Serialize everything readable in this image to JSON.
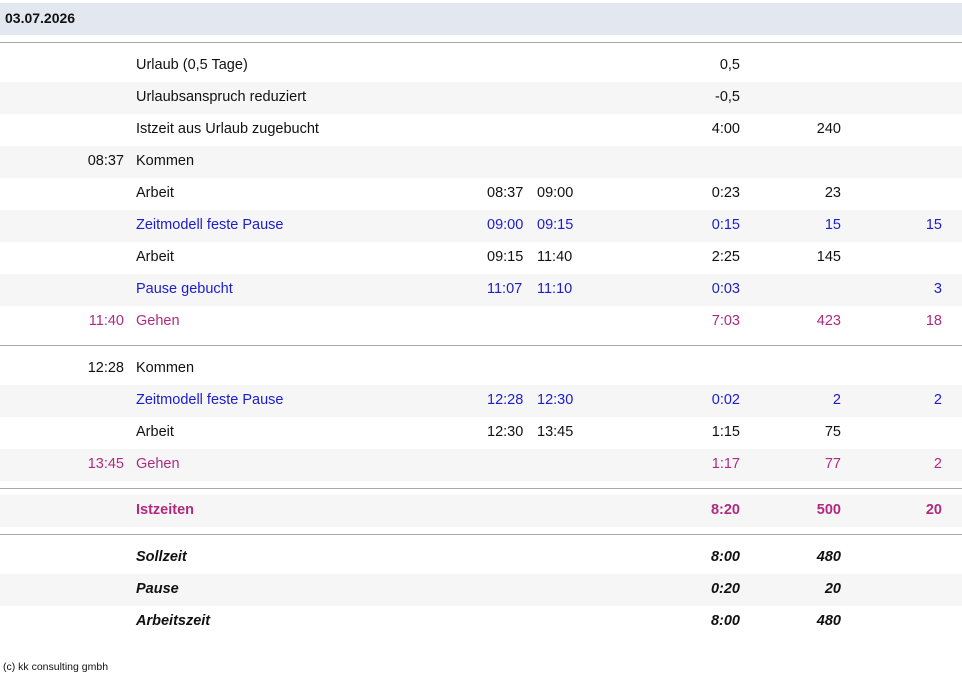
{
  "header": {
    "date": "03.07.2026"
  },
  "sections": [
    {
      "rows": [
        {
          "label": "Urlaub (0,5 Tage)",
          "duration": "0,5"
        },
        {
          "label": "Urlaubsanspruch reduziert",
          "duration": "-0,5"
        },
        {
          "label": "Istzeit aus Urlaub zugebucht",
          "duration": "4:00",
          "minutes": "240"
        },
        {
          "time": "08:37",
          "label": "Kommen"
        },
        {
          "label": "Arbeit",
          "from": "08:37",
          "to": "09:00",
          "duration": "0:23",
          "minutes": "23"
        },
        {
          "label": "Zeitmodell feste Pause",
          "from": "09:00",
          "to": "09:15",
          "duration": "0:15",
          "minutes": "15",
          "pause": "15",
          "color": "#1c1cd0"
        },
        {
          "label": "Arbeit",
          "from": "09:15",
          "to": "11:40",
          "duration": "2:25",
          "minutes": "145"
        },
        {
          "label": "Pause gebucht",
          "from": "11:07",
          "to": "11:10",
          "duration": "0:03",
          "pause": "3",
          "color": "#1c1cd0"
        },
        {
          "time": "11:40",
          "label": "Gehen",
          "duration": "7:03",
          "minutes": "423",
          "pause": "18",
          "color": "#b02a80"
        }
      ]
    },
    {
      "rows": [
        {
          "time": "12:28",
          "label": "Kommen"
        },
        {
          "label": "Zeitmodell feste Pause",
          "from": "12:28",
          "to": "12:30",
          "duration": "0:02",
          "minutes": "2",
          "pause": "2",
          "color": "#1c1cd0"
        },
        {
          "label": "Arbeit",
          "from": "12:30",
          "to": "13:45",
          "duration": "1:15",
          "minutes": "75"
        },
        {
          "time": "13:45",
          "label": "Gehen",
          "duration": "1:17",
          "minutes": "77",
          "pause": "2",
          "color": "#b02a80"
        }
      ]
    },
    {
      "rows": [
        {
          "label": "Istzeiten",
          "duration": "8:20",
          "minutes": "500",
          "pause": "20",
          "color": "#b02a80",
          "bold": true
        }
      ]
    },
    {
      "rows": [
        {
          "label": "Sollzeit",
          "duration": "8:00",
          "minutes": "480",
          "bold": true,
          "italic": true
        },
        {
          "label": "Pause",
          "duration": "0:20",
          "minutes": "20",
          "bold": true,
          "italic": true
        },
        {
          "label": "Arbeitszeit",
          "duration": "8:00",
          "minutes": "480",
          "bold": true,
          "italic": true
        }
      ]
    }
  ],
  "footer": "(c) kk consulting gmbh"
}
